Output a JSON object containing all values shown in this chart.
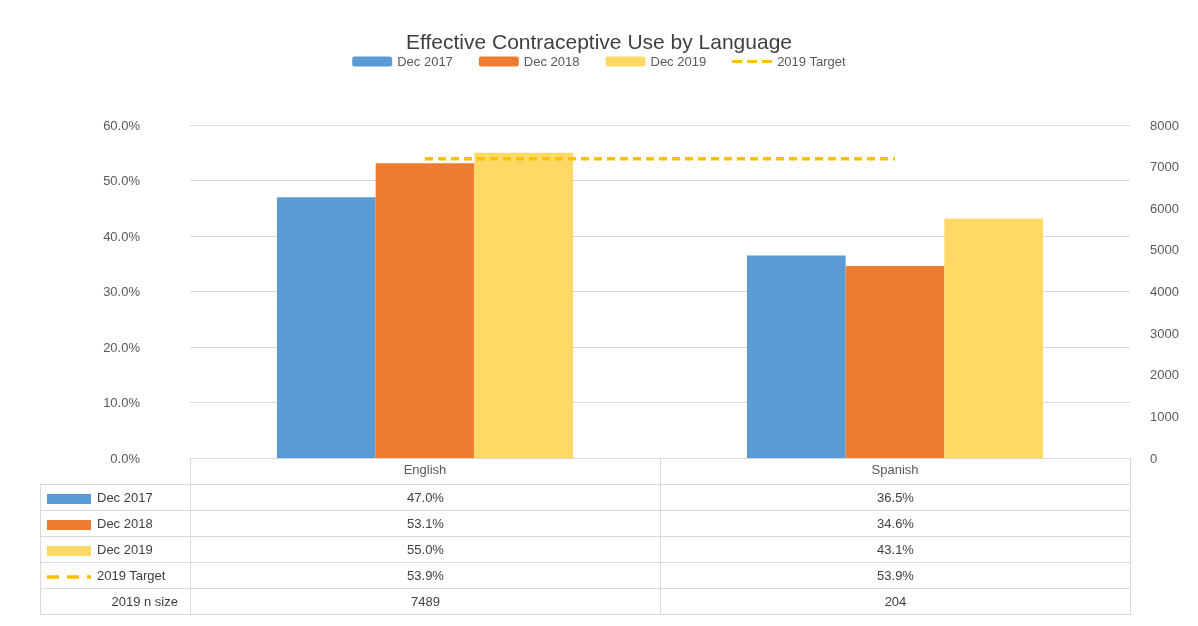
{
  "chart_data": {
    "type": "bar",
    "title": "Effective Contraceptive Use by Language",
    "categories": [
      "English",
      "Spanish"
    ],
    "series": [
      {
        "name": "Dec 2017",
        "color": "#5b9bd5",
        "values": [
          47.0,
          36.5
        ],
        "value_labels": [
          "47.0%",
          "36.5%"
        ]
      },
      {
        "name": "Dec 2018",
        "color": "#ed7d31",
        "values": [
          53.1,
          34.6
        ],
        "value_labels": [
          "53.1%",
          "34.6%"
        ]
      },
      {
        "name": "Dec 2019",
        "color": "#ffd966",
        "values": [
          55.0,
          43.1
        ],
        "value_labels": [
          "55.0%",
          "43.1%"
        ]
      },
      {
        "name": "2019 Target",
        "type": "line",
        "color": "#ffc000",
        "line_style": "dashed",
        "marker": "none",
        "values": [
          53.9,
          53.9
        ],
        "value_labels": [
          "53.9%",
          "53.9%"
        ]
      }
    ],
    "annotations": [
      "2019 n size",
      "7489",
      "204"
    ],
    "ylim": [
      0,
      60
    ],
    "yticks": [
      {
        "value": 0,
        "label": "0.0%"
      },
      {
        "value": 10,
        "label": "10.0%"
      },
      {
        "value": 20,
        "label": "20.0%"
      },
      {
        "value": 30,
        "label": "30.0%"
      },
      {
        "value": 40,
        "label": "40.0%"
      },
      {
        "value": 50,
        "label": "50.0%"
      },
      {
        "value": 60,
        "label": "60.0%"
      }
    ],
    "y2lim": [
      0,
      8000
    ],
    "y2ticks": [
      0,
      1000,
      2000,
      3000,
      4000,
      5000,
      6000,
      7000,
      8000
    ],
    "grid": "y",
    "legend": "top"
  }
}
